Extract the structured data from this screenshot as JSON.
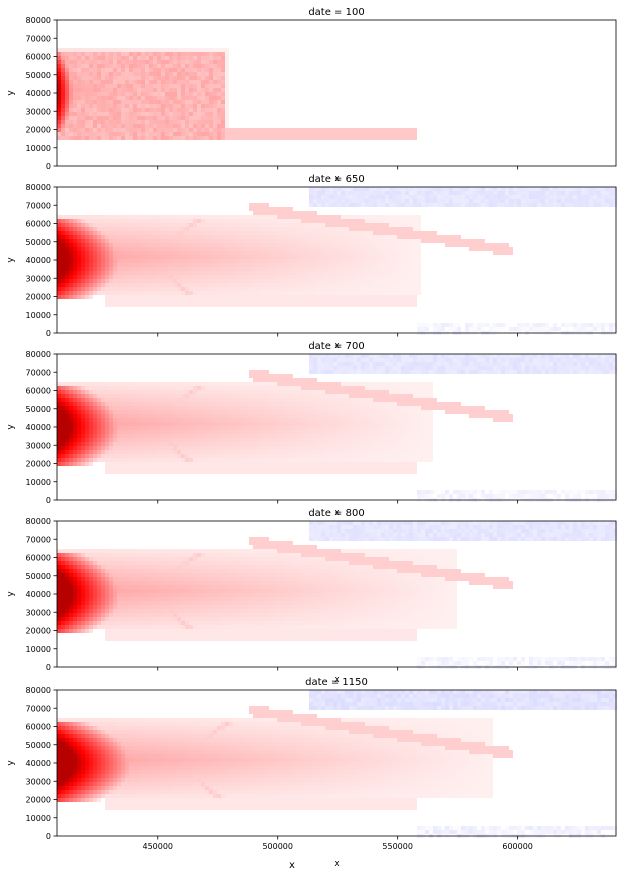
{
  "chart_data": {
    "type": "heatmap",
    "colormap": "bwr",
    "xlim": [
      408000,
      641000
    ],
    "ylim": [
      0,
      80000
    ],
    "x_ticks": [
      450000,
      500000,
      550000,
      600000
    ],
    "x_tick_labels": [
      "450000",
      "500000",
      "550000",
      "600000"
    ],
    "y_ticks": [
      0,
      10000,
      20000,
      30000,
      40000,
      50000,
      60000,
      70000,
      80000
    ],
    "y_tick_labels": [
      "0",
      "10000",
      "20000",
      "30000",
      "40000",
      "50000",
      "60000",
      "70000",
      "80000"
    ],
    "xlabel_outer": "x",
    "panel_xlabel": "x",
    "ylabel": "y",
    "panels": [
      {
        "title": "date = 100",
        "date": 100,
        "core_intensity": 0.85,
        "plume_extent_x": 480000,
        "blue_intensity": 0.0
      },
      {
        "title": "date = 650",
        "date": 650,
        "core_intensity": 0.95,
        "plume_extent_x": 560000,
        "blue_intensity": 0.12
      },
      {
        "title": "date = 700",
        "date": 700,
        "core_intensity": 0.97,
        "plume_extent_x": 565000,
        "blue_intensity": 0.12
      },
      {
        "title": "date = 800",
        "date": 800,
        "core_intensity": 1.0,
        "plume_extent_x": 575000,
        "blue_intensity": 0.12
      },
      {
        "title": "date = 1150",
        "date": 1150,
        "core_intensity": 1.0,
        "plume_extent_x": 590000,
        "blue_intensity": 0.14
      }
    ]
  }
}
